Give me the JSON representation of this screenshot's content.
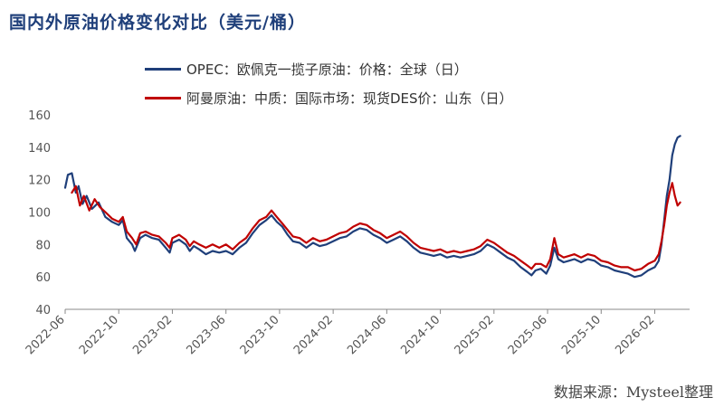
{
  "title": "国内外原油价格变化对比（美元/桶）",
  "source": "数据来源：Mysteel整理",
  "chart_data": {
    "type": "line",
    "title": "国内外原油价格变化对比（美元/桶）",
    "xlabel": "",
    "ylabel": "",
    "ylim": [
      40,
      160
    ],
    "y_ticks": [
      "40",
      "60",
      "80",
      "100",
      "120",
      "140",
      "160"
    ],
    "x_tick_labels": [
      "2022-06",
      "2022-10",
      "2023-02",
      "2023-06",
      "2023-10",
      "2024-02",
      "2024-06",
      "2024-10",
      "2025-02",
      "2025-06",
      "2025-10",
      "2026-02"
    ],
    "x_tick_index": [
      0,
      4,
      8,
      12,
      16,
      20,
      24,
      28,
      32,
      36,
      40,
      44
    ],
    "x_range": [
      0,
      46.6
    ],
    "grid": false,
    "legend_position": "top",
    "series": [
      {
        "name": "OPEC：欧佩克一揽子原油：价格：全球（日）",
        "color": "#1f3f7a",
        "points": [
          [
            0,
            115
          ],
          [
            0.2,
            123
          ],
          [
            0.5,
            124
          ],
          [
            0.8,
            112
          ],
          [
            1.0,
            116
          ],
          [
            1.3,
            105
          ],
          [
            1.6,
            110
          ],
          [
            2.0,
            102
          ],
          [
            2.5,
            106
          ],
          [
            3.0,
            97
          ],
          [
            3.5,
            94
          ],
          [
            4.0,
            92
          ],
          [
            4.3,
            95
          ],
          [
            4.6,
            84
          ],
          [
            5.0,
            80
          ],
          [
            5.2,
            76
          ],
          [
            5.6,
            84
          ],
          [
            6.0,
            86
          ],
          [
            6.5,
            84
          ],
          [
            7.0,
            83
          ],
          [
            7.5,
            78
          ],
          [
            7.8,
            75
          ],
          [
            8.0,
            81
          ],
          [
            8.5,
            83
          ],
          [
            9.0,
            80
          ],
          [
            9.3,
            76
          ],
          [
            9.6,
            79
          ],
          [
            10.0,
            77
          ],
          [
            10.5,
            74
          ],
          [
            11.0,
            76
          ],
          [
            11.5,
            75
          ],
          [
            12.0,
            76
          ],
          [
            12.5,
            74
          ],
          [
            13.0,
            78
          ],
          [
            13.5,
            81
          ],
          [
            14.0,
            87
          ],
          [
            14.5,
            92
          ],
          [
            15.0,
            95
          ],
          [
            15.4,
            98
          ],
          [
            15.8,
            94
          ],
          [
            16.2,
            91
          ],
          [
            16.6,
            86
          ],
          [
            17.0,
            82
          ],
          [
            17.5,
            81
          ],
          [
            18.0,
            78
          ],
          [
            18.5,
            81
          ],
          [
            19.0,
            79
          ],
          [
            19.5,
            80
          ],
          [
            20.0,
            82
          ],
          [
            20.5,
            84
          ],
          [
            21.0,
            85
          ],
          [
            21.5,
            88
          ],
          [
            22.0,
            90
          ],
          [
            22.5,
            89
          ],
          [
            23.0,
            86
          ],
          [
            23.5,
            84
          ],
          [
            24.0,
            81
          ],
          [
            24.5,
            83
          ],
          [
            25.0,
            85
          ],
          [
            25.5,
            82
          ],
          [
            26.0,
            78
          ],
          [
            26.5,
            75
          ],
          [
            27.0,
            74
          ],
          [
            27.5,
            73
          ],
          [
            28.0,
            74
          ],
          [
            28.5,
            72
          ],
          [
            29.0,
            73
          ],
          [
            29.5,
            72
          ],
          [
            30.0,
            73
          ],
          [
            30.5,
            74
          ],
          [
            31.0,
            76
          ],
          [
            31.5,
            80
          ],
          [
            32.0,
            78
          ],
          [
            32.5,
            75
          ],
          [
            33.0,
            72
          ],
          [
            33.5,
            70
          ],
          [
            34.0,
            66
          ],
          [
            34.5,
            63
          ],
          [
            34.8,
            61
          ],
          [
            35.1,
            64
          ],
          [
            35.5,
            65
          ],
          [
            35.9,
            62
          ],
          [
            36.2,
            67
          ],
          [
            36.5,
            78
          ],
          [
            36.8,
            71
          ],
          [
            37.2,
            69
          ],
          [
            37.6,
            70
          ],
          [
            38.0,
            71
          ],
          [
            38.5,
            69
          ],
          [
            39.0,
            71
          ],
          [
            39.5,
            70
          ],
          [
            40.0,
            67
          ],
          [
            40.5,
            66
          ],
          [
            41.0,
            64
          ],
          [
            41.5,
            63
          ],
          [
            42.0,
            62
          ],
          [
            42.5,
            60
          ],
          [
            43.0,
            61
          ],
          [
            43.5,
            64
          ],
          [
            44.0,
            66
          ],
          [
            44.3,
            70
          ],
          [
            44.5,
            80
          ],
          [
            44.7,
            95
          ],
          [
            44.9,
            110
          ],
          [
            45.1,
            120
          ],
          [
            45.3,
            135
          ],
          [
            45.5,
            142
          ],
          [
            45.7,
            146
          ],
          [
            45.9,
            147
          ]
        ]
      },
      {
        "name": "阿曼原油：中质：国际市场：现货DES价：山东（日）",
        "color": "#c00000",
        "points": [
          [
            0.5,
            112
          ],
          [
            0.8,
            116
          ],
          [
            1.1,
            104
          ],
          [
            1.4,
            110
          ],
          [
            1.8,
            101
          ],
          [
            2.2,
            108
          ],
          [
            2.6,
            103
          ],
          [
            3.0,
            100
          ],
          [
            3.5,
            96
          ],
          [
            4.0,
            94
          ],
          [
            4.3,
            97
          ],
          [
            4.6,
            88
          ],
          [
            5.0,
            84
          ],
          [
            5.3,
            80
          ],
          [
            5.6,
            87
          ],
          [
            6.0,
            88
          ],
          [
            6.5,
            86
          ],
          [
            7.0,
            85
          ],
          [
            7.5,
            81
          ],
          [
            7.8,
            78
          ],
          [
            8.0,
            84
          ],
          [
            8.5,
            86
          ],
          [
            9.0,
            83
          ],
          [
            9.3,
            79
          ],
          [
            9.6,
            82
          ],
          [
            10.0,
            80
          ],
          [
            10.5,
            78
          ],
          [
            11.0,
            80
          ],
          [
            11.5,
            78
          ],
          [
            12.0,
            80
          ],
          [
            12.5,
            77
          ],
          [
            13.0,
            81
          ],
          [
            13.5,
            84
          ],
          [
            14.0,
            90
          ],
          [
            14.5,
            95
          ],
          [
            15.0,
            97
          ],
          [
            15.4,
            101
          ],
          [
            15.8,
            97
          ],
          [
            16.2,
            93
          ],
          [
            16.6,
            89
          ],
          [
            17.0,
            85
          ],
          [
            17.5,
            84
          ],
          [
            18.0,
            81
          ],
          [
            18.5,
            84
          ],
          [
            19.0,
            82
          ],
          [
            19.5,
            83
          ],
          [
            20.0,
            85
          ],
          [
            20.5,
            87
          ],
          [
            21.0,
            88
          ],
          [
            21.5,
            91
          ],
          [
            22.0,
            93
          ],
          [
            22.5,
            92
          ],
          [
            23.0,
            89
          ],
          [
            23.5,
            87
          ],
          [
            24.0,
            84
          ],
          [
            24.5,
            86
          ],
          [
            25.0,
            88
          ],
          [
            25.5,
            85
          ],
          [
            26.0,
            81
          ],
          [
            26.5,
            78
          ],
          [
            27.0,
            77
          ],
          [
            27.5,
            76
          ],
          [
            28.0,
            77
          ],
          [
            28.5,
            75
          ],
          [
            29.0,
            76
          ],
          [
            29.5,
            75
          ],
          [
            30.0,
            76
          ],
          [
            30.5,
            77
          ],
          [
            31.0,
            79
          ],
          [
            31.5,
            83
          ],
          [
            32.0,
            81
          ],
          [
            32.5,
            78
          ],
          [
            33.0,
            75
          ],
          [
            33.5,
            73
          ],
          [
            34.0,
            70
          ],
          [
            34.5,
            67
          ],
          [
            34.8,
            65
          ],
          [
            35.1,
            68
          ],
          [
            35.5,
            68
          ],
          [
            35.9,
            66
          ],
          [
            36.2,
            71
          ],
          [
            36.5,
            84
          ],
          [
            36.8,
            74
          ],
          [
            37.2,
            72
          ],
          [
            37.6,
            73
          ],
          [
            38.0,
            74
          ],
          [
            38.5,
            72
          ],
          [
            39.0,
            74
          ],
          [
            39.5,
            73
          ],
          [
            40.0,
            70
          ],
          [
            40.5,
            69
          ],
          [
            41.0,
            67
          ],
          [
            41.5,
            66
          ],
          [
            42.0,
            66
          ],
          [
            42.5,
            64
          ],
          [
            43.0,
            65
          ],
          [
            43.5,
            68
          ],
          [
            44.0,
            70
          ],
          [
            44.3,
            74
          ],
          [
            44.5,
            82
          ],
          [
            44.7,
            92
          ],
          [
            44.9,
            104
          ],
          [
            45.1,
            112
          ],
          [
            45.3,
            118
          ],
          [
            45.5,
            110
          ],
          [
            45.7,
            104
          ],
          [
            45.9,
            106
          ]
        ]
      }
    ]
  }
}
